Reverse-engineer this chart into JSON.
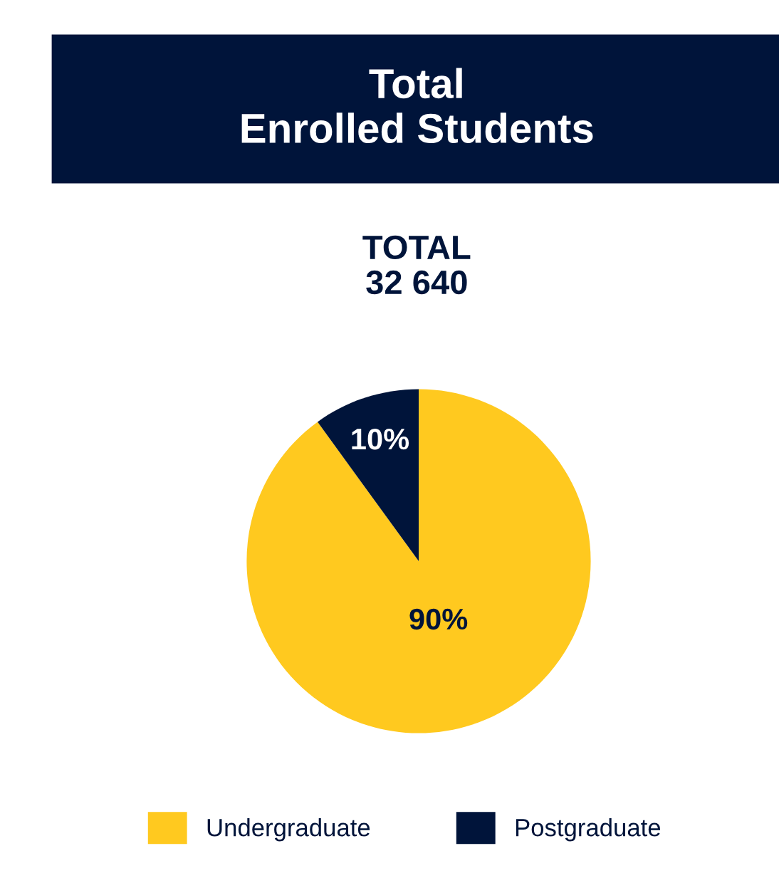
{
  "chart_data": {
    "type": "pie",
    "title": "Total\nEnrolled Students",
    "subtitle": "TOTAL\n32 640",
    "categories": [
      "Undergraduate",
      "Postgraduate"
    ],
    "values": [
      90,
      10
    ],
    "colors": [
      "#ffc91f",
      "#00143a"
    ],
    "value_labels": [
      "90%",
      "10%"
    ],
    "legend": "bottom"
  }
}
